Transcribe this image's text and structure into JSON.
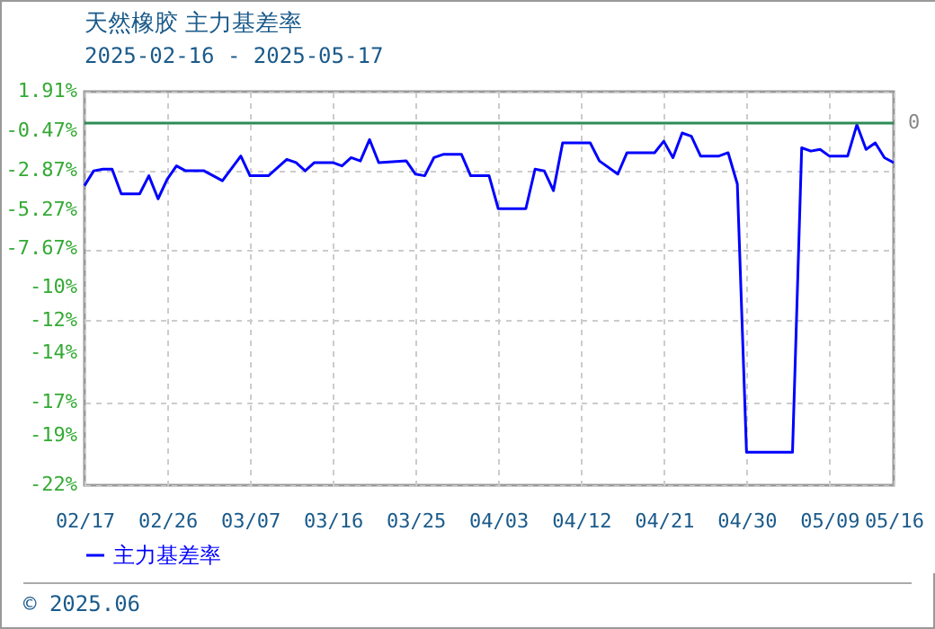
{
  "chart_data": {
    "type": "line",
    "title": "天然橡胶 主力基差率",
    "subtitle": "2025-02-16 - 2025-05-17",
    "x": [
      "2025-02-17",
      "2025-02-18",
      "2025-02-19",
      "2025-02-20",
      "2025-02-21",
      "2025-02-23",
      "2025-02-24",
      "2025-02-25",
      "2025-02-26",
      "2025-02-27",
      "2025-02-28",
      "2025-03-02",
      "2025-03-04",
      "2025-03-06",
      "2025-03-07",
      "2025-03-09",
      "2025-03-11",
      "2025-03-12",
      "2025-03-13",
      "2025-03-14",
      "2025-03-16",
      "2025-03-17",
      "2025-03-18",
      "2025-03-19",
      "2025-03-20",
      "2025-03-21",
      "2025-03-24",
      "2025-03-25",
      "2025-03-26",
      "2025-03-27",
      "2025-03-28",
      "2025-03-30",
      "2025-03-31",
      "2025-04-01",
      "2025-04-02",
      "2025-04-03",
      "2025-04-06",
      "2025-04-07",
      "2025-04-08",
      "2025-04-09",
      "2025-04-10",
      "2025-04-13",
      "2025-04-14",
      "2025-04-16",
      "2025-04-17",
      "2025-04-20",
      "2025-04-21",
      "2025-04-22",
      "2025-04-23",
      "2025-04-24",
      "2025-04-25",
      "2025-04-27",
      "2025-04-28",
      "2025-04-29",
      "2025-04-30",
      "2025-05-05",
      "2025-05-06",
      "2025-05-07",
      "2025-05-08",
      "2025-05-09",
      "2025-05-11",
      "2025-05-12",
      "2025-05-13",
      "2025-05-14",
      "2025-05-15",
      "2025-05-16"
    ],
    "series": [
      {
        "name": "主力基差率",
        "color": "#0000ff",
        "values": [
          -3.8,
          -2.9,
          -2.8,
          -2.8,
          -4.3,
          -4.3,
          -3.2,
          -4.6,
          -3.4,
          -2.6,
          -2.9,
          -2.9,
          -3.5,
          -2.0,
          -3.2,
          -3.2,
          -2.2,
          -2.4,
          -2.9,
          -2.4,
          -2.4,
          -2.6,
          -2.1,
          -2.3,
          -1.0,
          -2.4,
          -2.3,
          -3.1,
          -3.2,
          -2.1,
          -1.9,
          -1.9,
          -3.2,
          -3.2,
          -3.2,
          -5.2,
          -5.2,
          -2.8,
          -2.9,
          -4.1,
          -1.2,
          -1.2,
          -2.3,
          -3.1,
          -1.8,
          -1.8,
          -1.1,
          -2.1,
          -0.6,
          -0.8,
          -2.0,
          -2.0,
          -1.8,
          -3.7,
          -20.0,
          -20.0,
          -1.5,
          -1.7,
          -1.6,
          -2.0,
          -2.0,
          -0.1,
          -1.6,
          -1.2,
          -2.1,
          -2.4
        ]
      }
    ],
    "xlim": [
      "2025-02-17",
      "2025-05-16"
    ],
    "xticks": [
      {
        "value": "2025-02-17",
        "label": "02/17"
      },
      {
        "value": "2025-02-26",
        "label": "02/26"
      },
      {
        "value": "2025-03-07",
        "label": "03/07"
      },
      {
        "value": "2025-03-16",
        "label": "03/16"
      },
      {
        "value": "2025-03-25",
        "label": "03/25"
      },
      {
        "value": "2025-04-03",
        "label": "04/03"
      },
      {
        "value": "2025-04-12",
        "label": "04/12"
      },
      {
        "value": "2025-04-21",
        "label": "04/21"
      },
      {
        "value": "2025-04-30",
        "label": "04/30"
      },
      {
        "value": "2025-05-09",
        "label": "05/09"
      },
      {
        "value": "2025-05-16",
        "label": "05/16"
      }
    ],
    "ylim": [
      -22,
      1.91
    ],
    "yticks": [
      {
        "value": 1.91,
        "label": "1.91%"
      },
      {
        "value": -0.47,
        "label": "-0.47%"
      },
      {
        "value": -2.87,
        "label": "-2.87%"
      },
      {
        "value": -5.27,
        "label": "-5.27%"
      },
      {
        "value": -7.67,
        "label": "-7.67%"
      },
      {
        "value": -10,
        "label": "-10%"
      },
      {
        "value": -12,
        "label": "-12%"
      },
      {
        "value": -14,
        "label": "-14%"
      },
      {
        "value": -17,
        "label": "-17%"
      },
      {
        "value": -19,
        "label": "-19%"
      },
      {
        "value": -22,
        "label": "-22%"
      }
    ],
    "ref_lines": [
      {
        "axis": "y",
        "value": 0,
        "label": "0",
        "color": "#2e8b57"
      }
    ],
    "grid": true,
    "legend": "bottom",
    "marker": "none",
    "line_style": "solid",
    "annotations": [
      "© 2025.06"
    ]
  }
}
